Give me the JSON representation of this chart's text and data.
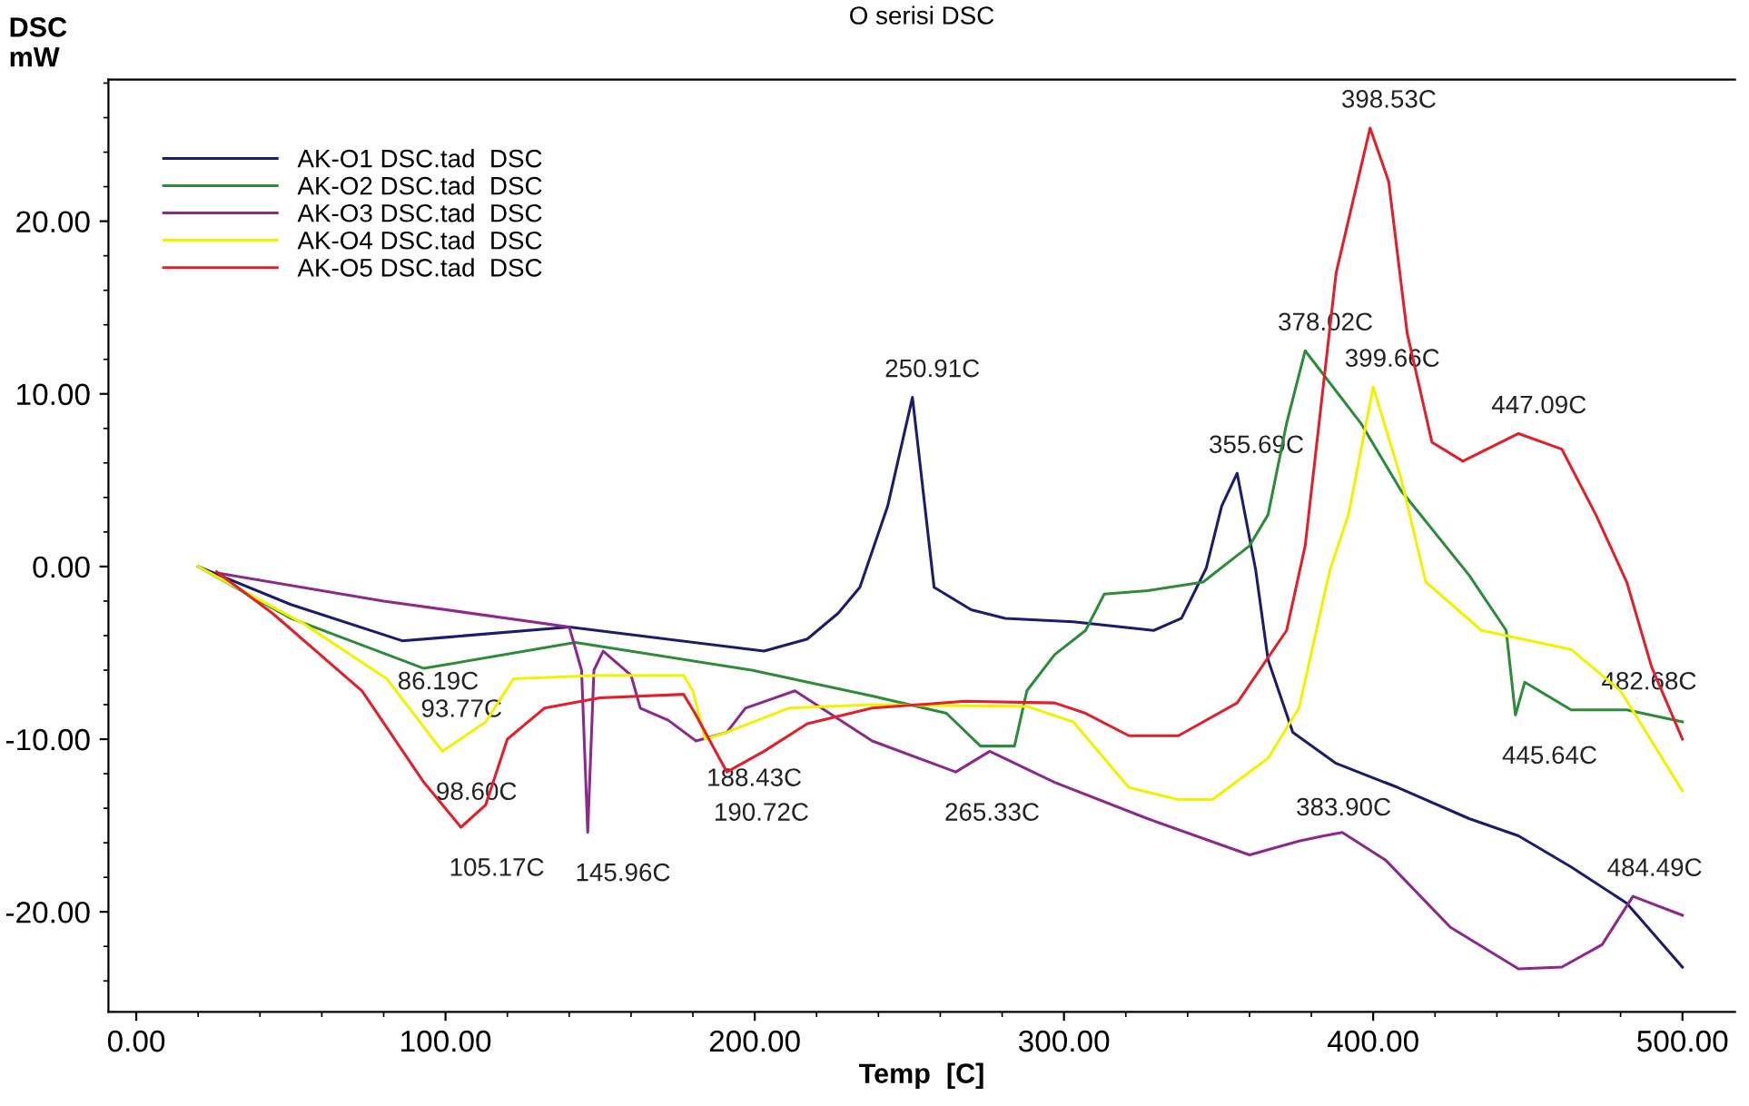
{
  "chart_data": {
    "type": "line",
    "title": "O serisi DSC",
    "xlabel": "Temp  [C]",
    "ylabel": "DSC\nmW",
    "xlim": [
      -9,
      517
    ],
    "ylim": [
      -25.8,
      28.2
    ],
    "xticks": [
      {
        "value": 0,
        "label": "0.00"
      },
      {
        "value": 100,
        "label": "100.00"
      },
      {
        "value": 200,
        "label": "200.00"
      },
      {
        "value": 300,
        "label": "300.00"
      },
      {
        "value": 400,
        "label": "400.00"
      },
      {
        "value": 500,
        "label": "500.00"
      }
    ],
    "yticks": [
      {
        "value": -20,
        "label": "-20.00"
      },
      {
        "value": -10,
        "label": "-10.00"
      },
      {
        "value": 0,
        "label": "0.00"
      },
      {
        "value": 10,
        "label": "10.00"
      },
      {
        "value": 20,
        "label": "20.00"
      }
    ],
    "grid": false,
    "legend": "top left",
    "marker": "none",
    "line_style": "solid",
    "series": [
      {
        "name": "AK-O1 DSC.tad  DSC",
        "color": "#1c1c6e",
        "x": [
          20,
          50,
          86,
          100,
          140,
          203,
          217,
          227,
          234,
          243,
          251,
          258,
          270,
          281,
          303,
          329,
          338,
          346,
          351,
          356,
          362,
          366,
          374,
          388,
          408,
          431,
          447,
          464,
          482,
          500
        ],
        "values": [
          0,
          -2.2,
          -4.3,
          -4.1,
          -3.5,
          -4.9,
          -4.2,
          -2.7,
          -1.2,
          3.5,
          9.8,
          -1.2,
          -2.5,
          -3.0,
          -3.2,
          -3.7,
          -3.0,
          -0.1,
          3.5,
          5.4,
          -0.2,
          -5.4,
          -9.6,
          -11.4,
          -12.8,
          -14.6,
          -15.6,
          -17.4,
          -19.5,
          -23.2
        ]
      },
      {
        "name": "AK-O2 DSC.tad  DSC",
        "color": "#2e8b3a",
        "x": [
          20,
          50,
          93,
          142,
          199,
          238,
          262,
          273,
          284,
          288,
          297,
          307,
          313,
          327,
          345,
          360,
          366,
          372,
          378,
          396,
          409,
          431,
          443,
          446,
          449,
          464,
          482,
          500
        ],
        "values": [
          0,
          -3.0,
          -5.9,
          -4.4,
          -6.0,
          -7.5,
          -8.5,
          -10.4,
          -10.4,
          -7.2,
          -5.1,
          -3.7,
          -1.6,
          -1.4,
          -0.9,
          1.2,
          3.0,
          8.3,
          12.5,
          8.3,
          4.4,
          -0.5,
          -3.7,
          -8.6,
          -6.7,
          -8.3,
          -8.3,
          -9.0
        ]
      },
      {
        "name": "AK-O3 DSC.tad  DSC",
        "color": "#8b2a8b",
        "x": [
          27,
          80,
          140,
          144,
          146,
          148,
          151,
          160,
          163,
          172,
          181,
          191,
          197,
          213,
          238,
          265,
          276,
          297,
          327,
          360,
          376,
          384,
          390,
          404,
          425,
          447,
          461,
          474,
          484,
          500
        ],
        "values": [
          -0.4,
          -2.0,
          -3.5,
          -6.0,
          -15.4,
          -6.0,
          -4.9,
          -6.3,
          -8.2,
          -8.9,
          -10.1,
          -9.6,
          -8.2,
          -7.2,
          -10.1,
          -11.9,
          -10.7,
          -12.5,
          -14.6,
          -16.7,
          -15.9,
          -15.6,
          -15.4,
          -17.0,
          -20.9,
          -23.3,
          -23.2,
          -21.9,
          -19.1,
          -20.2
        ]
      },
      {
        "name": "AK-O4 DSC.tad  DSC",
        "color": "#f2f200",
        "x": [
          20,
          54,
          81,
          99,
          113,
          122,
          150,
          177,
          180,
          184,
          191,
          211,
          238,
          288,
          303,
          321,
          337,
          348,
          366,
          376,
          386,
          392,
          400,
          409,
          417,
          419,
          435,
          464,
          480,
          500
        ],
        "values": [
          0,
          -3.3,
          -6.5,
          -10.7,
          -9.0,
          -6.5,
          -6.3,
          -6.3,
          -7.2,
          -10.0,
          -9.6,
          -8.2,
          -8.0,
          -8.1,
          -9.0,
          -12.8,
          -13.5,
          -13.5,
          -11.1,
          -8.2,
          -0.2,
          3.0,
          10.4,
          5.1,
          -0.9,
          -1.2,
          -3.7,
          -4.8,
          -7.2,
          -13.0
        ]
      },
      {
        "name": "AK-O5 DSC.tad  DSC",
        "color": "#e0202a",
        "x": [
          26,
          44,
          73,
          93,
          105,
          113,
          120,
          132,
          150,
          177,
          181,
          191,
          203,
          217,
          238,
          268,
          297,
          307,
          321,
          337,
          356,
          372,
          378,
          388,
          399,
          405,
          411,
          419,
          429,
          447,
          461,
          472,
          482,
          490,
          500
        ],
        "values": [
          -0.3,
          -2.7,
          -7.2,
          -12.5,
          -15.1,
          -13.8,
          -10.0,
          -8.2,
          -7.6,
          -7.4,
          -8.6,
          -11.9,
          -10.7,
          -9.1,
          -8.2,
          -7.8,
          -7.9,
          -8.5,
          -9.8,
          -9.8,
          -7.9,
          -3.7,
          1.2,
          17.0,
          25.4,
          22.3,
          13.5,
          7.2,
          6.1,
          7.7,
          6.8,
          3.0,
          -0.9,
          -5.8,
          -10.0
        ]
      }
    ],
    "annotations": [
      {
        "text": "86.19C",
        "x": 86.19,
        "y": -4.3
      },
      {
        "text": "93.77C",
        "x": 93.77,
        "y": -5.9
      },
      {
        "text": "98.60C",
        "x": 98.6,
        "y": -10.7
      },
      {
        "text": "105.17C",
        "x": 105.17,
        "y": -15.1
      },
      {
        "text": "145.96C",
        "x": 145.96,
        "y": -15.4
      },
      {
        "text": "188.43C",
        "x": 188.43,
        "y": -9.9
      },
      {
        "text": "190.72C",
        "x": 190.72,
        "y": -11.9
      },
      {
        "text": "250.91C",
        "x": 250.91,
        "y": 9.8
      },
      {
        "text": "265.33C",
        "x": 265.33,
        "y": -11.9
      },
      {
        "text": "355.69C",
        "x": 355.69,
        "y": 5.4
      },
      {
        "text": "378.02C",
        "x": 378.02,
        "y": 12.5
      },
      {
        "text": "383.90C",
        "x": 383.9,
        "y": -15.6
      },
      {
        "text": "398.53C",
        "x": 398.53,
        "y": 25.4
      },
      {
        "text": "399.66C",
        "x": 399.66,
        "y": 10.4
      },
      {
        "text": "445.64C",
        "x": 445.64,
        "y": -8.6
      },
      {
        "text": "447.09C",
        "x": 447.09,
        "y": 7.7
      },
      {
        "text": "482.68C",
        "x": 482.68,
        "y": -8.3
      },
      {
        "text": "484.49C",
        "x": 484.49,
        "y": -19.1
      }
    ]
  }
}
